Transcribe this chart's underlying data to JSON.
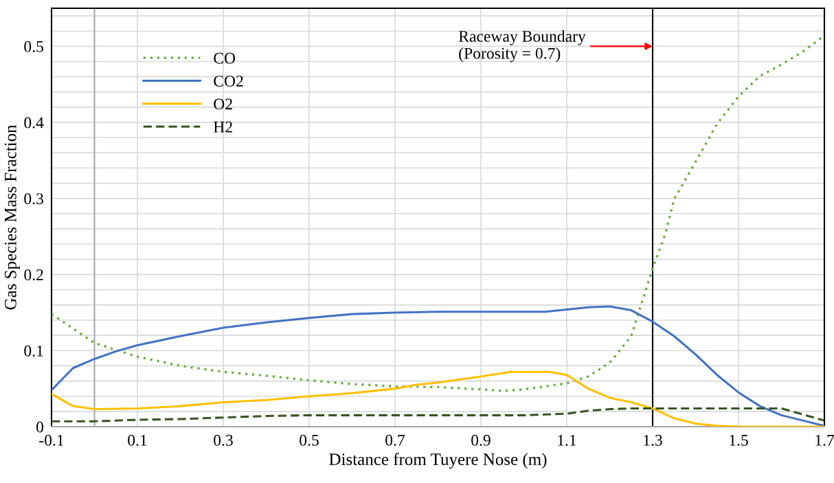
{
  "chart_data": {
    "type": "line",
    "xlabel": "Distance from Tuyere Nose (m)",
    "ylabel": "Gas Species Mass Fraction",
    "xlim": [
      -0.1,
      1.7
    ],
    "xticks": [
      -0.1,
      0.1,
      0.3,
      0.5,
      0.7,
      0.9,
      1.1,
      1.3,
      1.5,
      1.7
    ],
    "ylim": [
      0,
      0.55
    ],
    "yticks": [
      0,
      {
        "value": 0.02,
        "label": null
      },
      {
        "value": 0.04,
        "label": null
      },
      {
        "value": 0.06,
        "label": null
      },
      {
        "value": 0.08,
        "label": null
      },
      0.1,
      {
        "value": 0.12,
        "label": null
      },
      {
        "value": 0.14,
        "label": null
      },
      {
        "value": 0.16,
        "label": null
      },
      {
        "value": 0.18,
        "label": null
      },
      0.2,
      {
        "value": 0.22,
        "label": null
      },
      {
        "value": 0.24,
        "label": null
      },
      {
        "value": 0.26,
        "label": null
      },
      {
        "value": 0.28,
        "label": null
      },
      0.3,
      {
        "value": 0.32,
        "label": null
      },
      {
        "value": 0.34,
        "label": null
      },
      {
        "value": 0.36,
        "label": null
      },
      {
        "value": 0.38,
        "label": null
      },
      0.4,
      {
        "value": 0.42,
        "label": null
      },
      {
        "value": 0.44,
        "label": null
      },
      {
        "value": 0.46,
        "label": null
      },
      {
        "value": 0.48,
        "label": null
      },
      0.5,
      {
        "value": 0.52,
        "label": null
      },
      {
        "value": 0.54,
        "label": null
      }
    ],
    "grid": true,
    "legend": "top left",
    "marker": "none",
    "series": [
      {
        "name": "CO",
        "color": "#70ad47",
        "line_style": "dotted",
        "x": [
          -0.1,
          0,
          0.1,
          0.2,
          0.3,
          0.4,
          0.5,
          0.6,
          0.7,
          0.8,
          0.9,
          0.95,
          1.0,
          1.05,
          1.1,
          1.15,
          1.2,
          1.25,
          1.3,
          1.33,
          1.35,
          1.4,
          1.45,
          1.5,
          1.55,
          1.6,
          1.65,
          1.7
        ],
        "values": [
          0.148,
          0.11,
          0.092,
          0.08,
          0.072,
          0.067,
          0.061,
          0.056,
          0.053,
          0.052,
          0.049,
          0.047,
          0.049,
          0.053,
          0.057,
          0.066,
          0.084,
          0.119,
          0.208,
          0.254,
          0.299,
          0.348,
          0.398,
          0.434,
          0.461,
          0.476,
          0.493,
          0.514
        ]
      },
      {
        "name": "CO2",
        "color": "#4472c4",
        "line_style": "solid",
        "x": [
          -0.1,
          -0.05,
          0,
          0.05,
          0.1,
          0.2,
          0.3,
          0.4,
          0.5,
          0.6,
          0.7,
          0.8,
          0.9,
          1.0,
          1.05,
          1.1,
          1.15,
          1.2,
          1.25,
          1.3,
          1.35,
          1.4,
          1.45,
          1.5,
          1.55,
          1.6,
          1.65,
          1.7
        ],
        "values": [
          0.048,
          0.077,
          0.089,
          0.099,
          0.107,
          0.119,
          0.13,
          0.137,
          0.143,
          0.148,
          0.15,
          0.151,
          0.151,
          0.151,
          0.151,
          0.154,
          0.157,
          0.158,
          0.153,
          0.138,
          0.119,
          0.095,
          0.068,
          0.045,
          0.027,
          0.015,
          0.008,
          0.001
        ]
      },
      {
        "name": "O2",
        "color": "#ffc000",
        "line_style": "solid",
        "x": [
          -0.1,
          -0.05,
          0,
          0.1,
          0.2,
          0.3,
          0.4,
          0.5,
          0.6,
          0.7,
          0.75,
          0.8,
          0.9,
          0.97,
          1.06,
          1.1,
          1.15,
          1.2,
          1.25,
          1.3,
          1.35,
          1.4,
          1.45,
          1.5,
          1.6,
          1.7
        ],
        "values": [
          0.043,
          0.027,
          0.023,
          0.024,
          0.027,
          0.032,
          0.035,
          0.04,
          0.044,
          0.05,
          0.055,
          0.058,
          0.066,
          0.072,
          0.072,
          0.068,
          0.05,
          0.038,
          0.032,
          0.024,
          0.011,
          0.004,
          0.001,
          0,
          0,
          0
        ]
      },
      {
        "name": "H2",
        "color": "#375623",
        "line_style": "dashed",
        "x": [
          -0.1,
          0,
          0.1,
          0.2,
          0.3,
          0.4,
          0.5,
          0.6,
          0.7,
          0.8,
          0.9,
          1.0,
          1.05,
          1.1,
          1.15,
          1.2,
          1.25,
          1.3,
          1.4,
          1.5,
          1.6,
          1.7
        ],
        "values": [
          0.007,
          0.007,
          0.009,
          0.01,
          0.012,
          0.014,
          0.015,
          0.015,
          0.015,
          0.015,
          0.015,
          0.015,
          0.016,
          0.017,
          0.021,
          0.023,
          0.024,
          0.024,
          0.024,
          0.024,
          0.024,
          0.008
        ]
      }
    ],
    "ref_lines": [
      {
        "axis": "x",
        "value": 0,
        "color": "#a6a6a6"
      },
      {
        "axis": "x",
        "value": 1.3,
        "color": "#000000"
      }
    ],
    "annotations": [
      {
        "text": "Raceway Boundary\n(Porosity = 0.7)",
        "x": 1.3,
        "y": 0.5
      }
    ]
  }
}
